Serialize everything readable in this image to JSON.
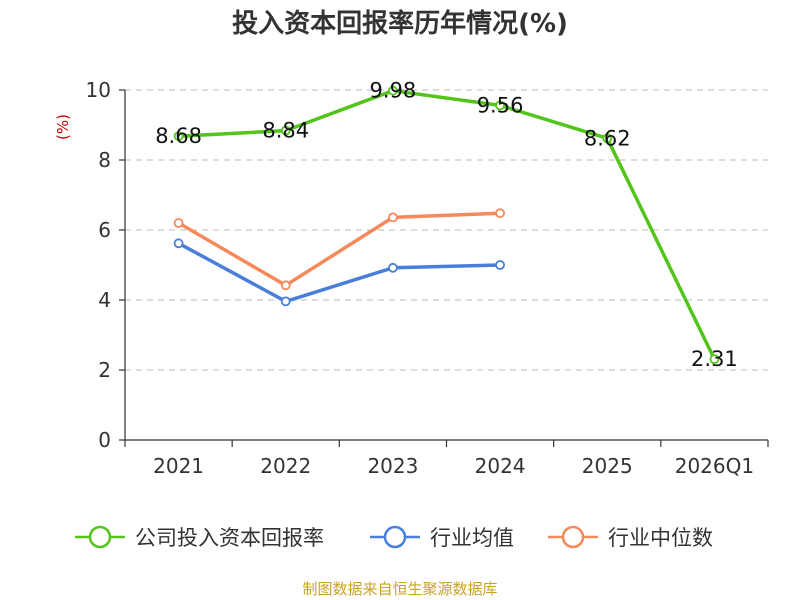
{
  "chart_data": {
    "type": "line",
    "title": "投入资本回报率历年情况(%)",
    "ylabel": "(%)",
    "xlabel": "",
    "categories": [
      "2021",
      "2022",
      "2023",
      "2024",
      "2025",
      "2026Q1"
    ],
    "ylim": [
      0,
      10
    ],
    "yticks": [
      0,
      2,
      4,
      6,
      8,
      10
    ],
    "grid": true,
    "legend_position": "bottom",
    "series": [
      {
        "name": "公司投入资本回报率",
        "color": "#52c41a",
        "values": [
          8.68,
          8.84,
          9.98,
          9.56,
          8.62,
          2.31
        ],
        "labels": [
          "8.68",
          "8.84",
          "9.98",
          "9.56",
          "8.62",
          "2.31"
        ],
        "show_labels": true
      },
      {
        "name": "行业均值",
        "color": "#4a7fd9",
        "values": [
          5.62,
          3.96,
          4.92,
          5.0,
          null,
          null
        ],
        "show_labels": false
      },
      {
        "name": "行业中位数",
        "color": "#f5895a",
        "values": [
          6.2,
          4.42,
          6.36,
          6.48,
          null,
          null
        ],
        "show_labels": false
      }
    ]
  },
  "footer": {
    "source": "制图数据来自恒生聚源数据库"
  }
}
